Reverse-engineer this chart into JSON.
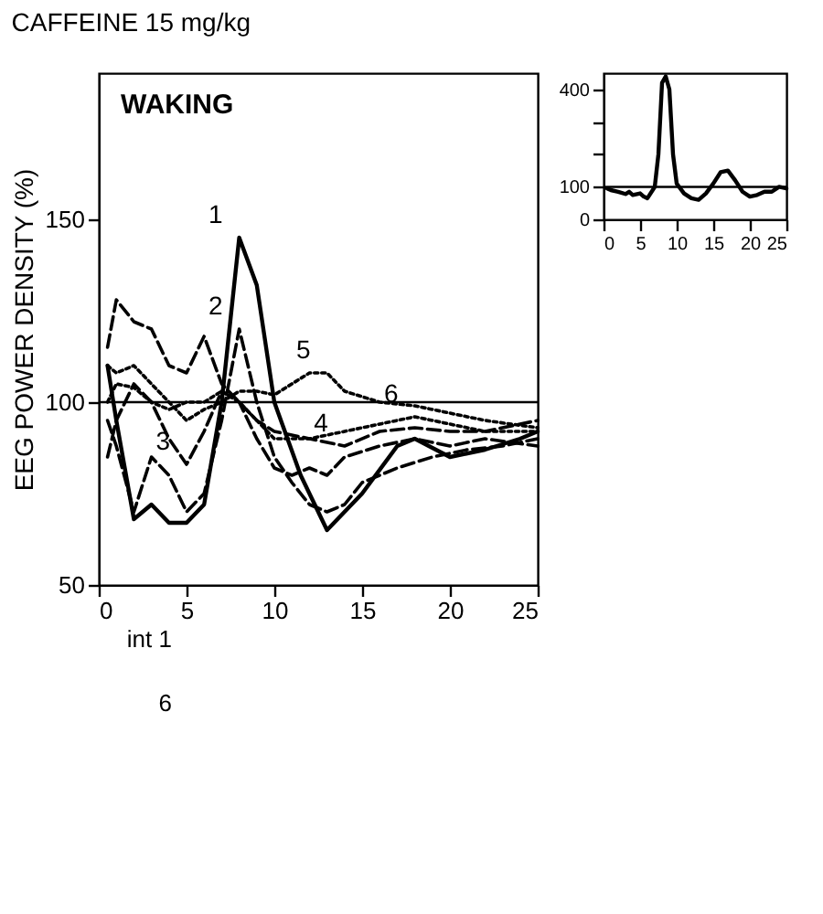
{
  "chart_data": [
    {
      "type": "line",
      "title": "CAFFEINE 15 mg/kg",
      "ylabel": "EEG POWER DENSITY (%)",
      "xlim": [
        0,
        25
      ],
      "xticks": [
        0,
        5,
        10,
        15,
        20,
        25
      ],
      "ylim": [
        50,
        190
      ],
      "yticks": [
        50,
        100,
        150
      ],
      "grid": false,
      "marker": "none",
      "series": [
        {
          "color": "#000000",
          "line_style": "solid",
          "x": [
            0.5,
            1,
            2,
            3,
            4,
            5,
            6,
            7,
            8,
            9,
            10,
            11.5,
            13,
            15,
            17,
            18,
            20,
            22,
            24,
            25
          ],
          "values": [
            110,
            95,
            68,
            72,
            67,
            67,
            72,
            100,
            145,
            132,
            100,
            80,
            65,
            75,
            88,
            90,
            85,
            87,
            90,
            92
          ]
        },
        {
          "color": "#000000",
          "line_style": "dashed",
          "x": [
            0.5,
            1,
            2,
            3,
            4,
            5,
            6,
            7,
            8,
            9,
            10,
            11,
            12,
            13,
            14,
            15,
            17,
            19,
            21,
            23,
            25
          ],
          "values": [
            95,
            88,
            70,
            85,
            80,
            70,
            75,
            95,
            120,
            100,
            85,
            78,
            72,
            70,
            72,
            78,
            82,
            85,
            87,
            88,
            90
          ]
        },
        {
          "color": "#000000",
          "line_style": "dashed",
          "x": [
            0.5,
            1,
            2,
            3,
            4,
            5,
            6,
            7,
            8,
            9,
            10,
            11,
            12,
            13,
            14,
            16,
            18,
            20,
            22,
            25
          ],
          "values": [
            85,
            95,
            105,
            100,
            90,
            83,
            92,
            103,
            100,
            90,
            82,
            80,
            82,
            80,
            85,
            88,
            90,
            88,
            90,
            88
          ]
        },
        {
          "color": "#000000",
          "line_style": "dashed",
          "x": [
            0.5,
            1,
            2,
            3,
            4,
            5,
            6,
            7,
            8,
            9,
            10,
            12,
            14,
            16,
            18,
            20,
            22,
            25
          ],
          "values": [
            115,
            128,
            122,
            120,
            110,
            108,
            118,
            105,
            100,
            95,
            92,
            90,
            88,
            92,
            93,
            92,
            92,
            95
          ]
        },
        {
          "color": "#000000",
          "line_style": "dotted",
          "x": [
            0.5,
            1,
            2,
            3,
            4,
            5,
            6,
            7,
            8,
            9,
            10,
            11,
            12,
            13,
            14,
            16,
            18,
            20,
            22,
            25
          ],
          "values": [
            110,
            108,
            110,
            105,
            100,
            95,
            98,
            100,
            103,
            103,
            102,
            105,
            108,
            108,
            103,
            100,
            99,
            97,
            95,
            93
          ]
        },
        {
          "color": "#000000",
          "line_style": "dotted",
          "x": [
            0.5,
            1,
            2,
            3,
            4,
            5,
            6,
            7,
            8,
            9,
            10,
            12,
            14,
            16,
            18,
            20,
            22,
            25
          ],
          "values": [
            100,
            105,
            104,
            100,
            98,
            100,
            100,
            103,
            100,
            95,
            90,
            90,
            92,
            94,
            96,
            94,
            92,
            92
          ]
        }
      ],
      "ref_lines": [
        {
          "axis": "y",
          "value": 100,
          "color": "#000000",
          "line_style": "solid"
        }
      ],
      "annotations": [
        "WAKING",
        {
          "text": "1",
          "x": 8,
          "y": 145
        },
        {
          "text": "2",
          "x": 8,
          "y": 120
        },
        {
          "text": "3",
          "x": 5,
          "y": 83
        },
        {
          "text": "4",
          "x": 14,
          "y": 88
        },
        {
          "text": "5",
          "x": 13,
          "y": 108
        },
        {
          "text": "6",
          "x": 18,
          "y": 96
        }
      ]
    },
    {
      "type": "line",
      "xlim": [
        0,
        25
      ],
      "xticks": [
        0,
        5,
        10,
        15,
        20,
        25
      ],
      "ylim": [
        0,
        450
      ],
      "yticks": [
        0,
        100,
        {
          "value": 200,
          "label": null
        },
        {
          "value": 300,
          "label": null
        },
        400
      ],
      "grid": false,
      "marker": "none",
      "series": [
        {
          "color": "#000000",
          "line_style": "solid",
          "x": [
            0.5,
            1,
            2,
            3,
            3.5,
            4,
            5,
            5.5,
            6,
            7,
            7.5,
            8,
            8.5,
            9,
            9.5,
            10,
            11,
            12,
            13,
            14,
            15,
            16,
            17,
            18,
            19,
            20,
            21,
            22,
            23,
            24,
            25
          ],
          "values": [
            95,
            90,
            85,
            78,
            85,
            75,
            80,
            70,
            65,
            100,
            200,
            420,
            440,
            400,
            200,
            110,
            80,
            65,
            60,
            80,
            110,
            145,
            150,
            120,
            85,
            70,
            75,
            85,
            85,
            100,
            95
          ]
        }
      ],
      "ref_lines": [
        {
          "axis": "y",
          "value": 100,
          "color": "#000000",
          "line_style": "solid"
        }
      ]
    },
    {
      "type": "other",
      "annotations": [
        "int 1",
        "6"
      ]
    }
  ]
}
